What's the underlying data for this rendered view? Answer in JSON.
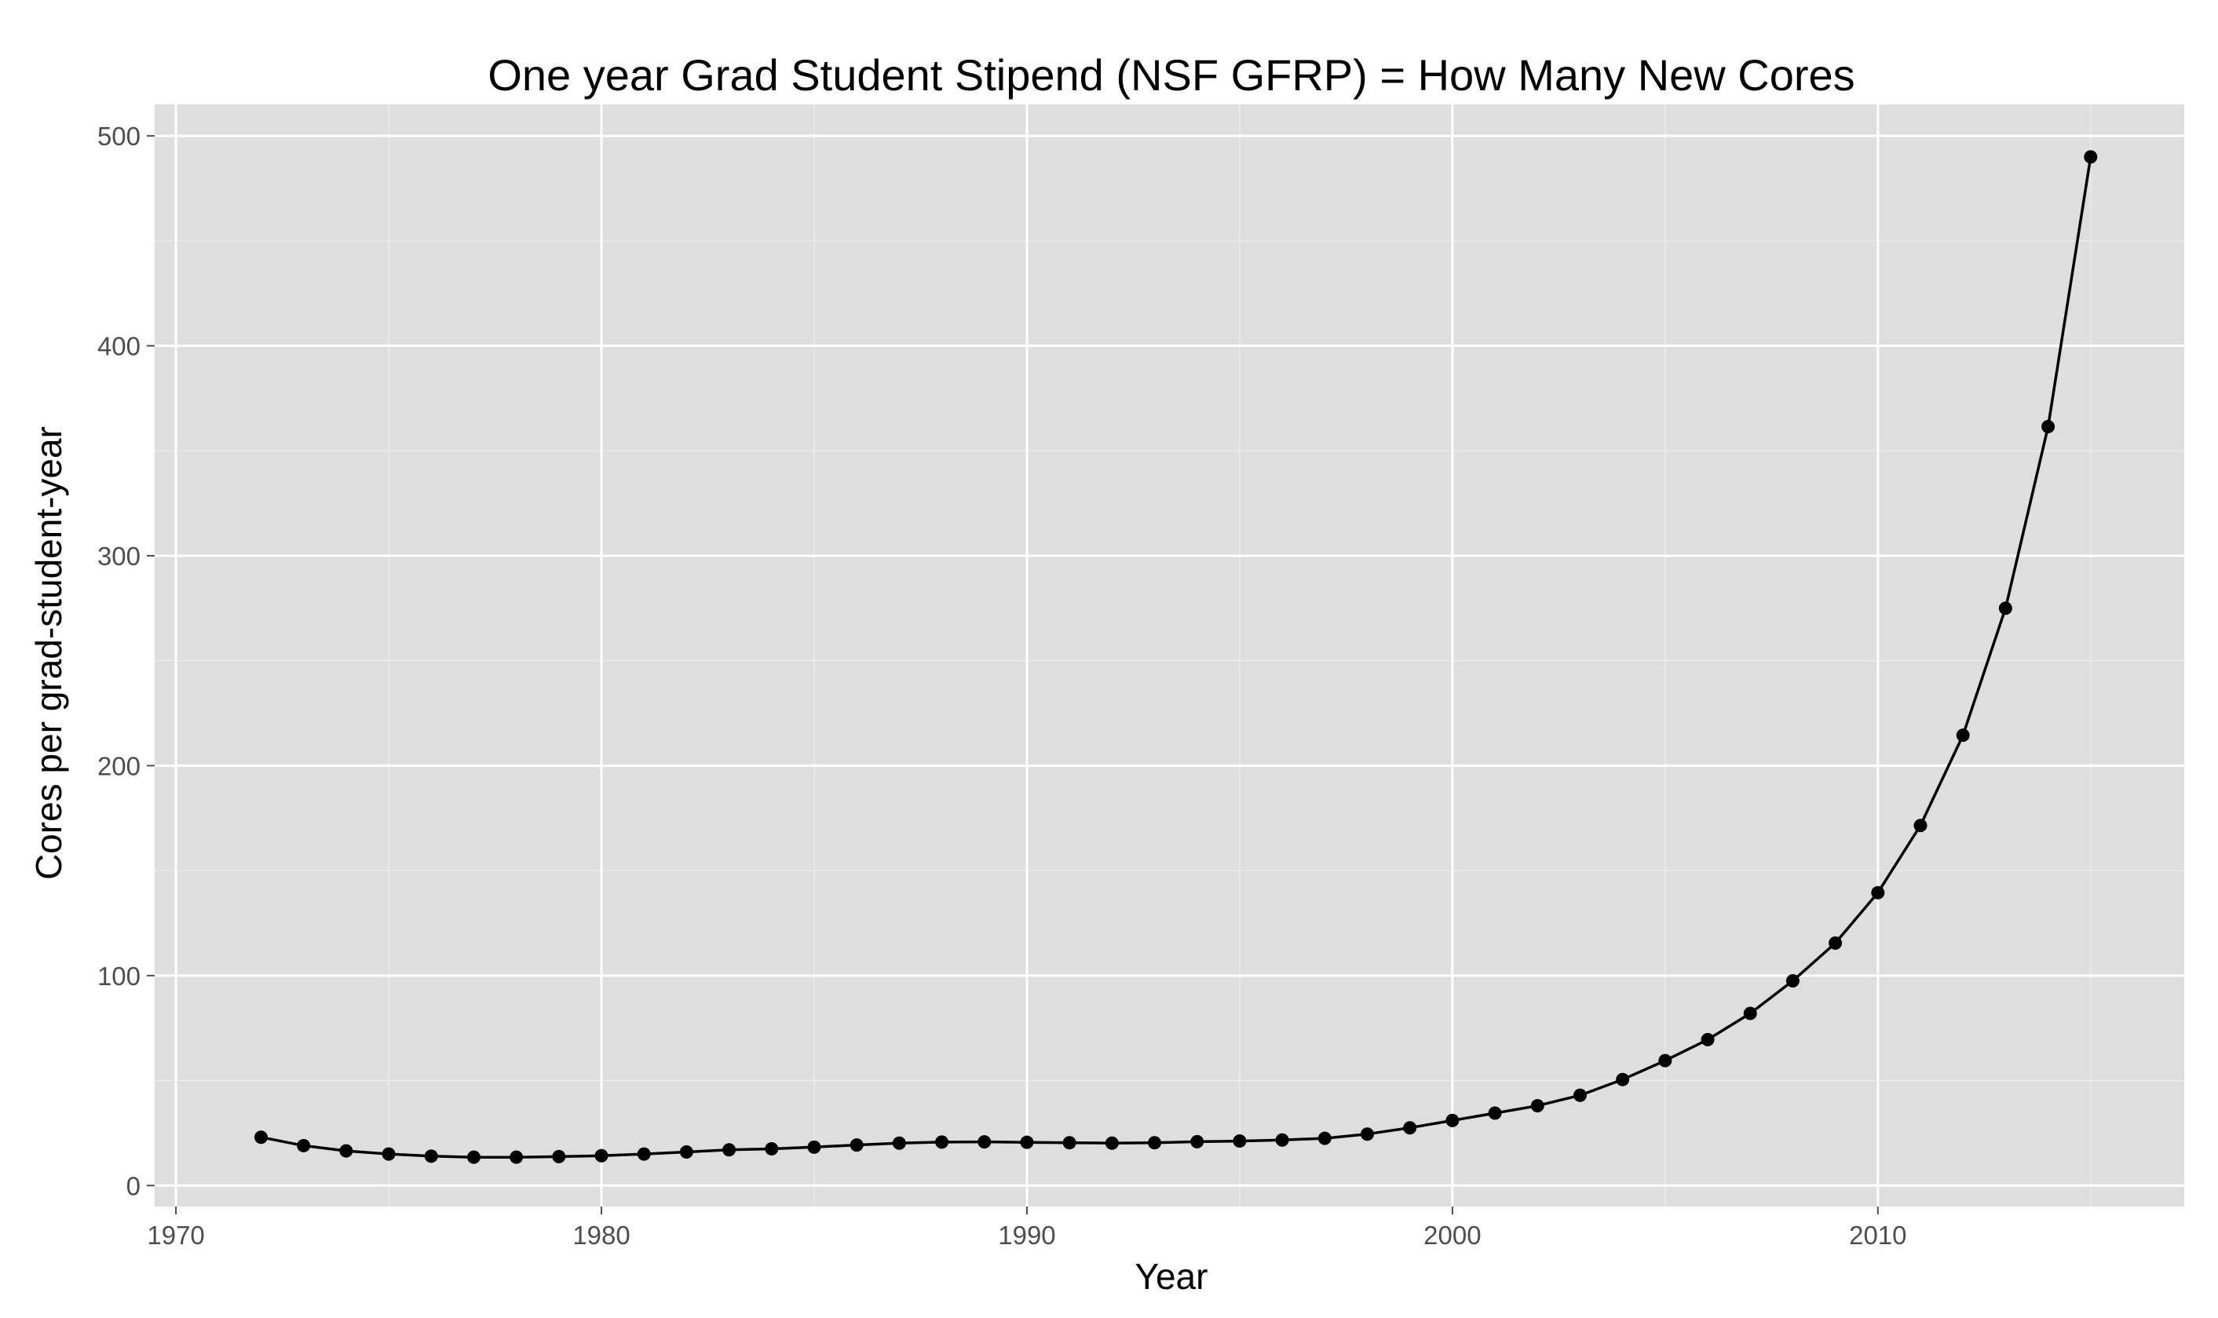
{
  "chart_data": {
    "type": "line",
    "title": "One year Grad Student Stipend (NSF GFRP) = How Many New Cores",
    "xlabel": "Year",
    "ylabel": "Cores per grad-student-year",
    "xlim": [
      1969.5,
      2017.2
    ],
    "ylim": [
      -10,
      515
    ],
    "x_ticks": [
      1970,
      1980,
      1990,
      2000,
      2010
    ],
    "y_ticks": [
      0,
      100,
      200,
      300,
      400,
      500
    ],
    "grid": true,
    "markers": true,
    "colors": {
      "panel_background": "#dedede",
      "grid_major": "#ffffff",
      "grid_minor": "#ececec",
      "line": "#000000"
    },
    "x": [
      1972,
      1973,
      1974,
      1975,
      1976,
      1977,
      1978,
      1979,
      1980,
      1981,
      1982,
      1983,
      1984,
      1985,
      1986,
      1987,
      1988,
      1989,
      1990,
      1991,
      1992,
      1993,
      1994,
      1995,
      1996,
      1997,
      1998,
      1999,
      2000,
      2001,
      2002,
      2003,
      2004,
      2005,
      2006,
      2007,
      2008,
      2009,
      2010,
      2011,
      2012,
      2013,
      2014,
      2015
    ],
    "y": [
      23,
      19,
      16.5,
      15,
      14,
      13.5,
      13.5,
      13.8,
      14.2,
      15,
      16,
      17,
      17.5,
      18.3,
      19.3,
      20.2,
      20.7,
      20.8,
      20.6,
      20.4,
      20.2,
      20.4,
      20.9,
      21.2,
      21.7,
      22.5,
      24.5,
      27.5,
      31,
      34.5,
      38,
      43,
      50.5,
      59.5,
      69.5,
      82,
      97.5,
      115.5,
      139.5,
      171.5,
      214.5,
      275,
      361.5,
      490
    ]
  }
}
